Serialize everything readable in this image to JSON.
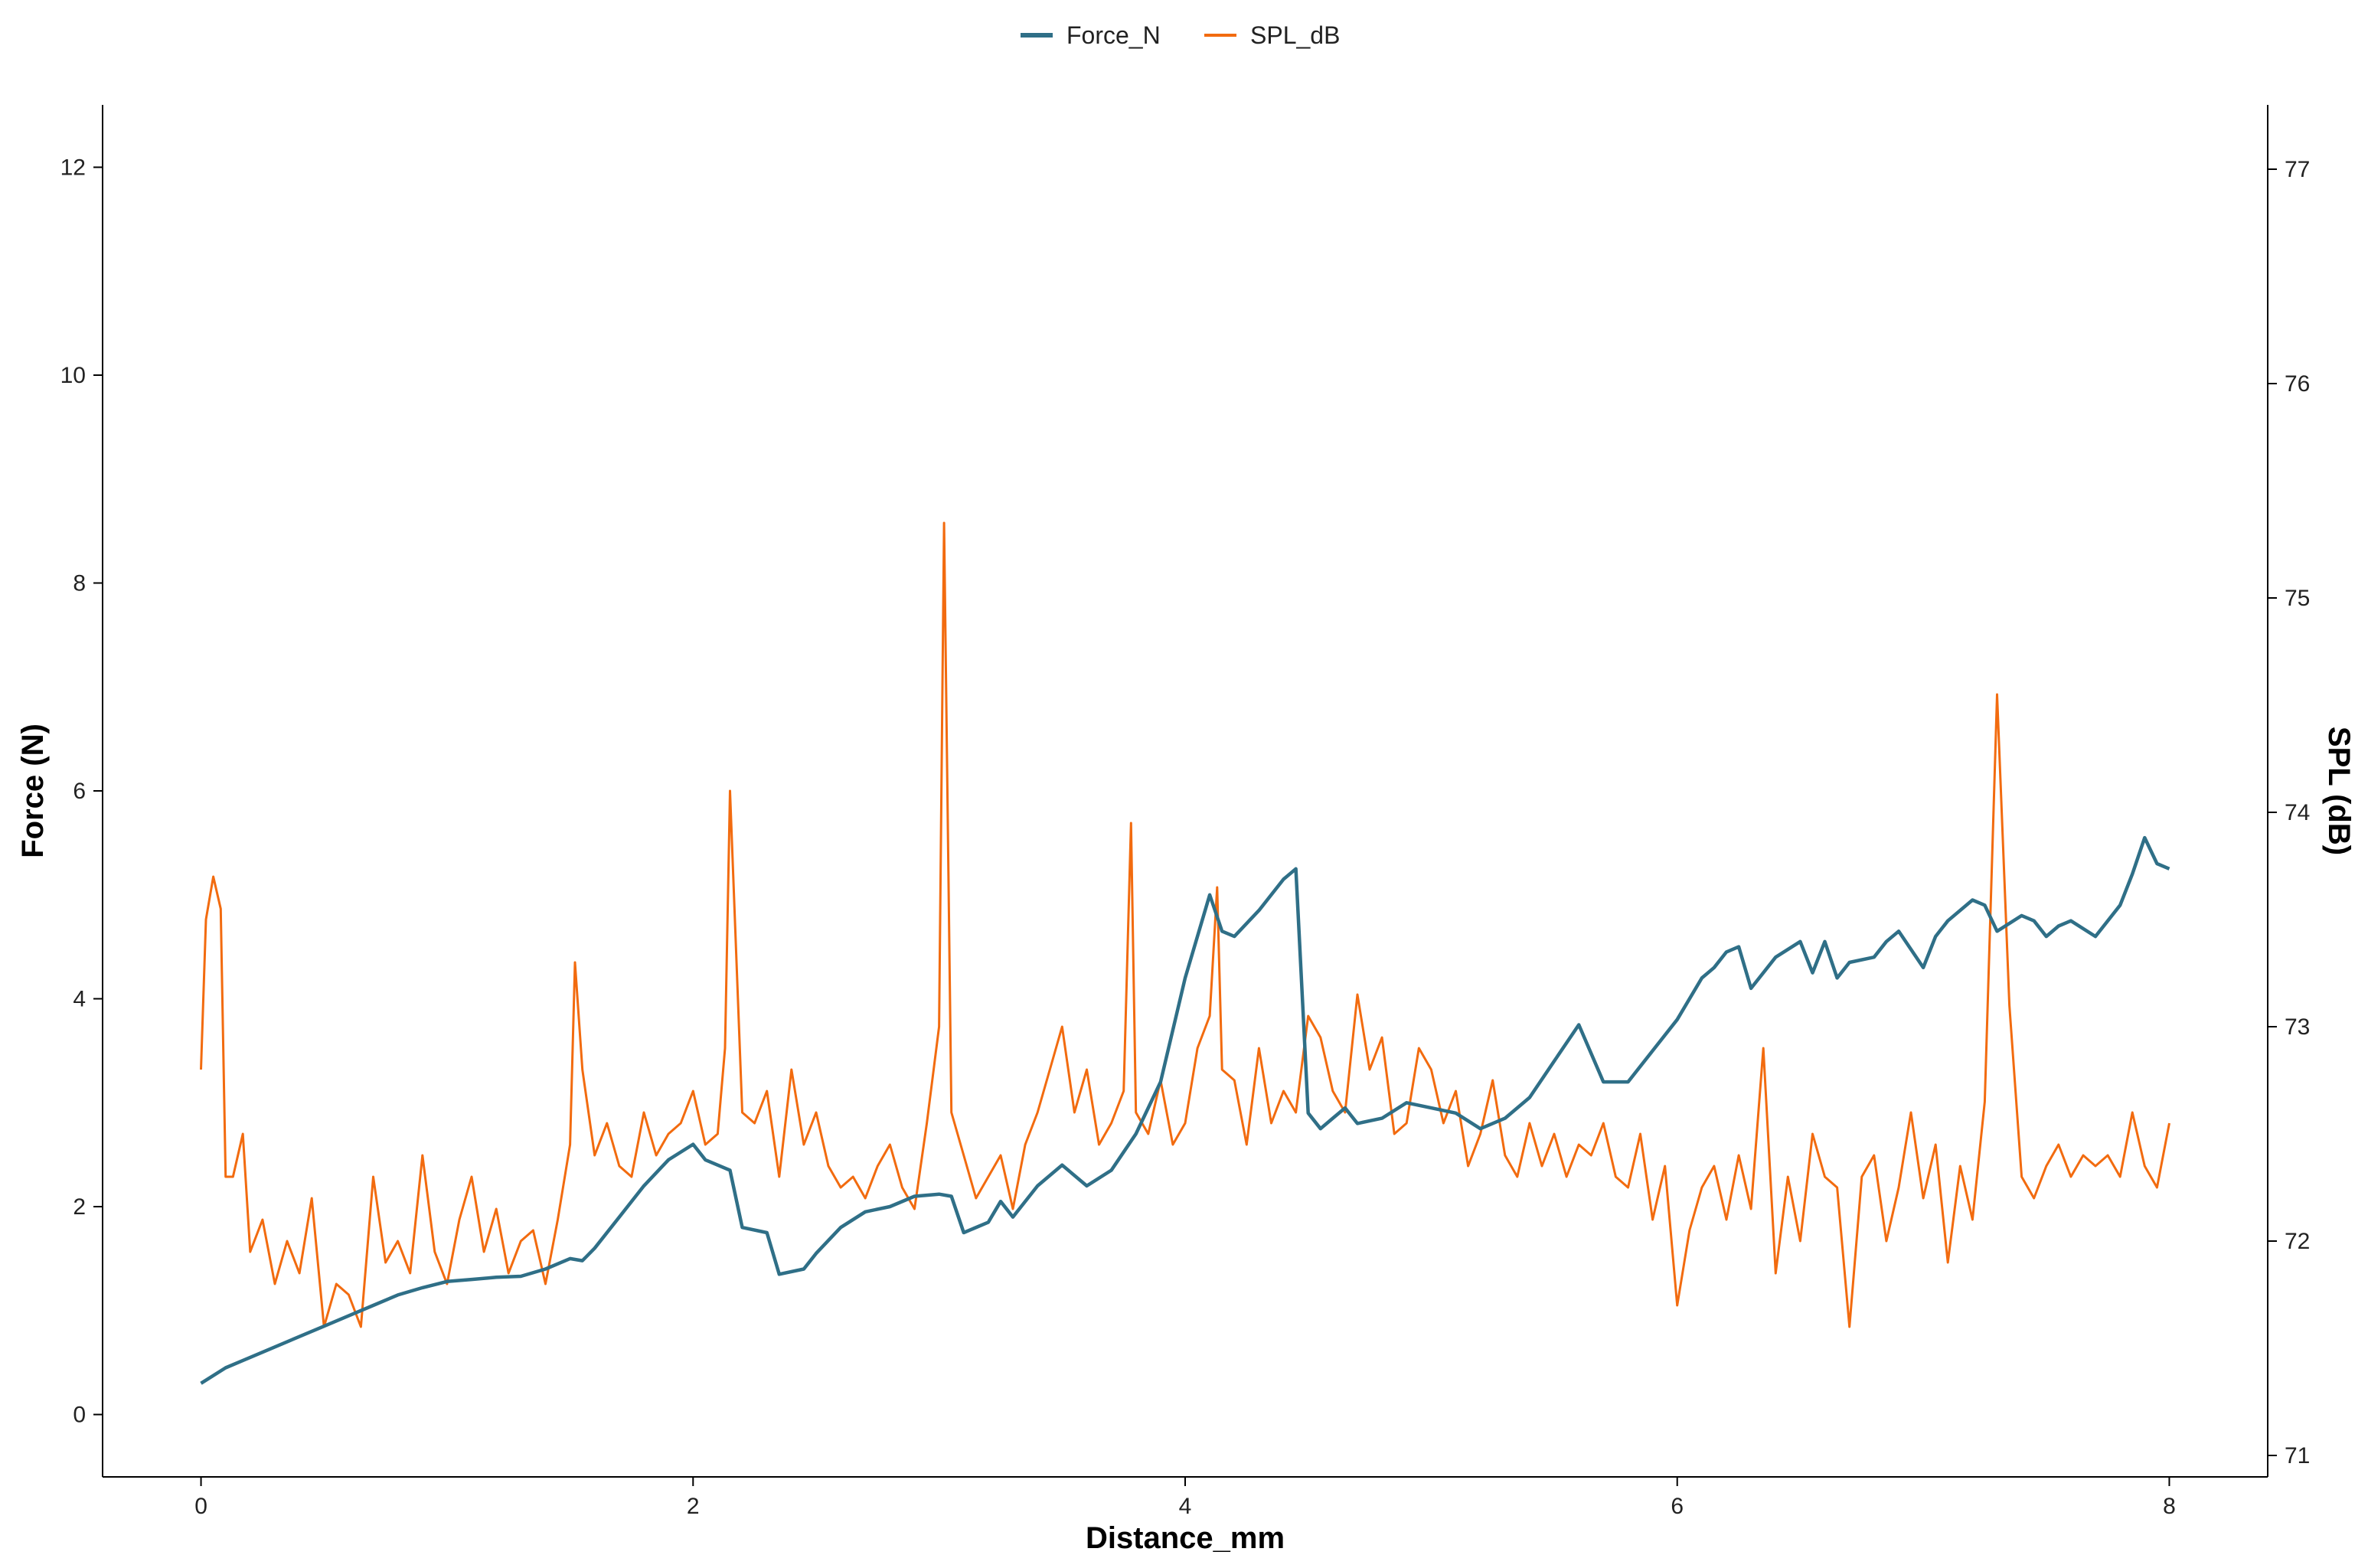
{
  "chart_data": {
    "type": "line",
    "xlabel": "Distance_mm",
    "ylabel": "Force (N)",
    "y2label": "SPL (dB)",
    "xlim": [
      -0.4,
      8.4
    ],
    "ylim": [
      -0.6,
      12.6
    ],
    "y2lim": [
      70.9,
      77.3
    ],
    "x_ticks": [
      0,
      2,
      4,
      6,
      8
    ],
    "y_ticks": [
      0,
      2,
      4,
      6,
      8,
      10,
      12
    ],
    "y2_ticks": [
      71,
      72,
      73,
      74,
      75,
      76,
      77
    ],
    "grid": false,
    "legend_position": "top",
    "series": [
      {
        "name": "Force_N",
        "axis": "left",
        "color": "#2f6f87",
        "x": [
          0.0,
          0.1,
          0.2,
          0.3,
          0.4,
          0.5,
          0.6,
          0.7,
          0.8,
          0.9,
          1.0,
          1.1,
          1.2,
          1.3,
          1.4,
          1.5,
          1.55,
          1.6,
          1.7,
          1.8,
          1.9,
          2.0,
          2.05,
          2.15,
          2.2,
          2.3,
          2.35,
          2.45,
          2.5,
          2.6,
          2.7,
          2.8,
          2.9,
          3.0,
          3.05,
          3.1,
          3.2,
          3.25,
          3.3,
          3.4,
          3.5,
          3.6,
          3.7,
          3.8,
          3.9,
          4.0,
          4.1,
          4.15,
          4.2,
          4.3,
          4.4,
          4.45,
          4.5,
          4.55,
          4.6,
          4.65,
          4.7,
          4.8,
          4.9,
          5.0,
          5.1,
          5.2,
          5.3,
          5.4,
          5.5,
          5.6,
          5.7,
          5.8,
          5.9,
          6.0,
          6.1,
          6.15,
          6.2,
          6.25,
          6.3,
          6.4,
          6.5,
          6.55,
          6.6,
          6.65,
          6.7,
          6.8,
          6.85,
          6.9,
          7.0,
          7.05,
          7.1,
          7.2,
          7.25,
          7.3,
          7.4,
          7.45,
          7.5,
          7.55,
          7.6,
          7.7,
          7.8,
          7.85,
          7.9,
          7.95,
          8.0
        ],
        "values": [
          0.3,
          0.45,
          0.55,
          0.65,
          0.75,
          0.85,
          0.95,
          1.05,
          1.15,
          1.22,
          1.28,
          1.3,
          1.32,
          1.33,
          1.4,
          1.5,
          1.48,
          1.6,
          1.9,
          2.2,
          2.45,
          2.6,
          2.45,
          2.35,
          1.8,
          1.75,
          1.35,
          1.4,
          1.55,
          1.8,
          1.95,
          2.0,
          2.1,
          2.12,
          2.1,
          1.75,
          1.85,
          2.05,
          1.9,
          2.2,
          2.4,
          2.2,
          2.35,
          2.7,
          3.2,
          4.2,
          5.0,
          4.65,
          4.6,
          4.85,
          5.15,
          5.25,
          2.9,
          2.75,
          2.85,
          2.95,
          2.8,
          2.85,
          3.0,
          2.95,
          2.9,
          2.75,
          2.85,
          3.05,
          3.4,
          3.75,
          3.2,
          3.2,
          3.5,
          3.8,
          4.2,
          4.3,
          4.45,
          4.5,
          4.1,
          4.4,
          4.55,
          4.25,
          4.55,
          4.2,
          4.35,
          4.4,
          4.55,
          4.65,
          4.3,
          4.6,
          4.75,
          4.95,
          4.9,
          4.65,
          4.8,
          4.75,
          4.6,
          4.7,
          4.75,
          4.6,
          4.9,
          5.2,
          5.55,
          5.3,
          5.25
        ]
      },
      {
        "name": "SPL_dB",
        "axis": "right",
        "color": "#f26b0f",
        "x": [
          0.0,
          0.02,
          0.05,
          0.08,
          0.1,
          0.13,
          0.17,
          0.2,
          0.25,
          0.3,
          0.35,
          0.4,
          0.45,
          0.5,
          0.55,
          0.6,
          0.65,
          0.7,
          0.75,
          0.8,
          0.85,
          0.9,
          0.95,
          1.0,
          1.05,
          1.1,
          1.15,
          1.2,
          1.25,
          1.3,
          1.35,
          1.4,
          1.45,
          1.5,
          1.52,
          1.55,
          1.6,
          1.65,
          1.7,
          1.75,
          1.8,
          1.85,
          1.9,
          1.95,
          2.0,
          2.05,
          2.1,
          2.13,
          2.15,
          2.2,
          2.25,
          2.3,
          2.35,
          2.4,
          2.45,
          2.5,
          2.55,
          2.6,
          2.65,
          2.7,
          2.75,
          2.8,
          2.85,
          2.9,
          2.95,
          3.0,
          3.02,
          3.05,
          3.1,
          3.15,
          3.2,
          3.25,
          3.3,
          3.35,
          3.4,
          3.45,
          3.5,
          3.55,
          3.6,
          3.65,
          3.7,
          3.75,
          3.78,
          3.8,
          3.85,
          3.9,
          3.95,
          4.0,
          4.05,
          4.1,
          4.13,
          4.15,
          4.2,
          4.25,
          4.3,
          4.35,
          4.4,
          4.45,
          4.5,
          4.55,
          4.6,
          4.65,
          4.7,
          4.75,
          4.8,
          4.85,
          4.9,
          4.95,
          5.0,
          5.05,
          5.1,
          5.15,
          5.2,
          5.25,
          5.3,
          5.35,
          5.4,
          5.45,
          5.5,
          5.55,
          5.6,
          5.65,
          5.7,
          5.75,
          5.8,
          5.85,
          5.9,
          5.95,
          6.0,
          6.05,
          6.1,
          6.15,
          6.2,
          6.25,
          6.3,
          6.35,
          6.4,
          6.45,
          6.5,
          6.55,
          6.6,
          6.65,
          6.7,
          6.75,
          6.8,
          6.85,
          6.9,
          6.95,
          7.0,
          7.05,
          7.1,
          7.15,
          7.2,
          7.25,
          7.3,
          7.35,
          7.4,
          7.45,
          7.5,
          7.55,
          7.6,
          7.65,
          7.7,
          7.75,
          7.8,
          7.85,
          7.9,
          7.95,
          8.0
        ],
        "values": [
          72.8,
          73.5,
          73.7,
          73.55,
          72.3,
          72.3,
          72.5,
          71.95,
          72.1,
          71.8,
          72.0,
          71.85,
          72.2,
          71.6,
          71.8,
          71.75,
          71.6,
          72.3,
          71.9,
          72.0,
          71.85,
          72.4,
          71.95,
          71.8,
          72.1,
          72.3,
          71.95,
          72.15,
          71.85,
          72.0,
          72.05,
          71.8,
          72.1,
          72.45,
          73.3,
          72.8,
          72.4,
          72.55,
          72.35,
          72.3,
          72.6,
          72.4,
          72.5,
          72.55,
          72.7,
          72.45,
          72.5,
          72.9,
          74.1,
          72.6,
          72.55,
          72.7,
          72.3,
          72.8,
          72.45,
          72.6,
          72.35,
          72.25,
          72.3,
          72.2,
          72.35,
          72.45,
          72.25,
          72.15,
          72.55,
          73.0,
          75.35,
          72.6,
          72.4,
          72.2,
          72.3,
          72.4,
          72.15,
          72.45,
          72.6,
          72.8,
          73.0,
          72.6,
          72.8,
          72.45,
          72.55,
          72.7,
          73.95,
          72.6,
          72.5,
          72.75,
          72.45,
          72.55,
          72.9,
          73.05,
          73.65,
          72.8,
          72.75,
          72.45,
          72.9,
          72.55,
          72.7,
          72.6,
          73.05,
          72.95,
          72.7,
          72.6,
          73.15,
          72.8,
          72.95,
          72.5,
          72.55,
          72.9,
          72.8,
          72.55,
          72.7,
          72.35,
          72.5,
          72.75,
          72.4,
          72.3,
          72.55,
          72.35,
          72.5,
          72.3,
          72.45,
          72.4,
          72.55,
          72.3,
          72.25,
          72.5,
          72.1,
          72.35,
          71.7,
          72.05,
          72.25,
          72.35,
          72.1,
          72.4,
          72.15,
          72.9,
          71.85,
          72.3,
          72.0,
          72.5,
          72.3,
          72.25,
          71.6,
          72.3,
          72.4,
          72.0,
          72.25,
          72.6,
          72.2,
          72.45,
          71.9,
          72.35,
          72.1,
          72.65,
          74.55,
          73.1,
          72.3,
          72.2,
          72.35,
          72.45,
          72.3,
          72.4,
          72.35,
          72.4,
          72.3,
          72.6,
          72.35,
          72.25,
          72.55
        ]
      }
    ]
  }
}
